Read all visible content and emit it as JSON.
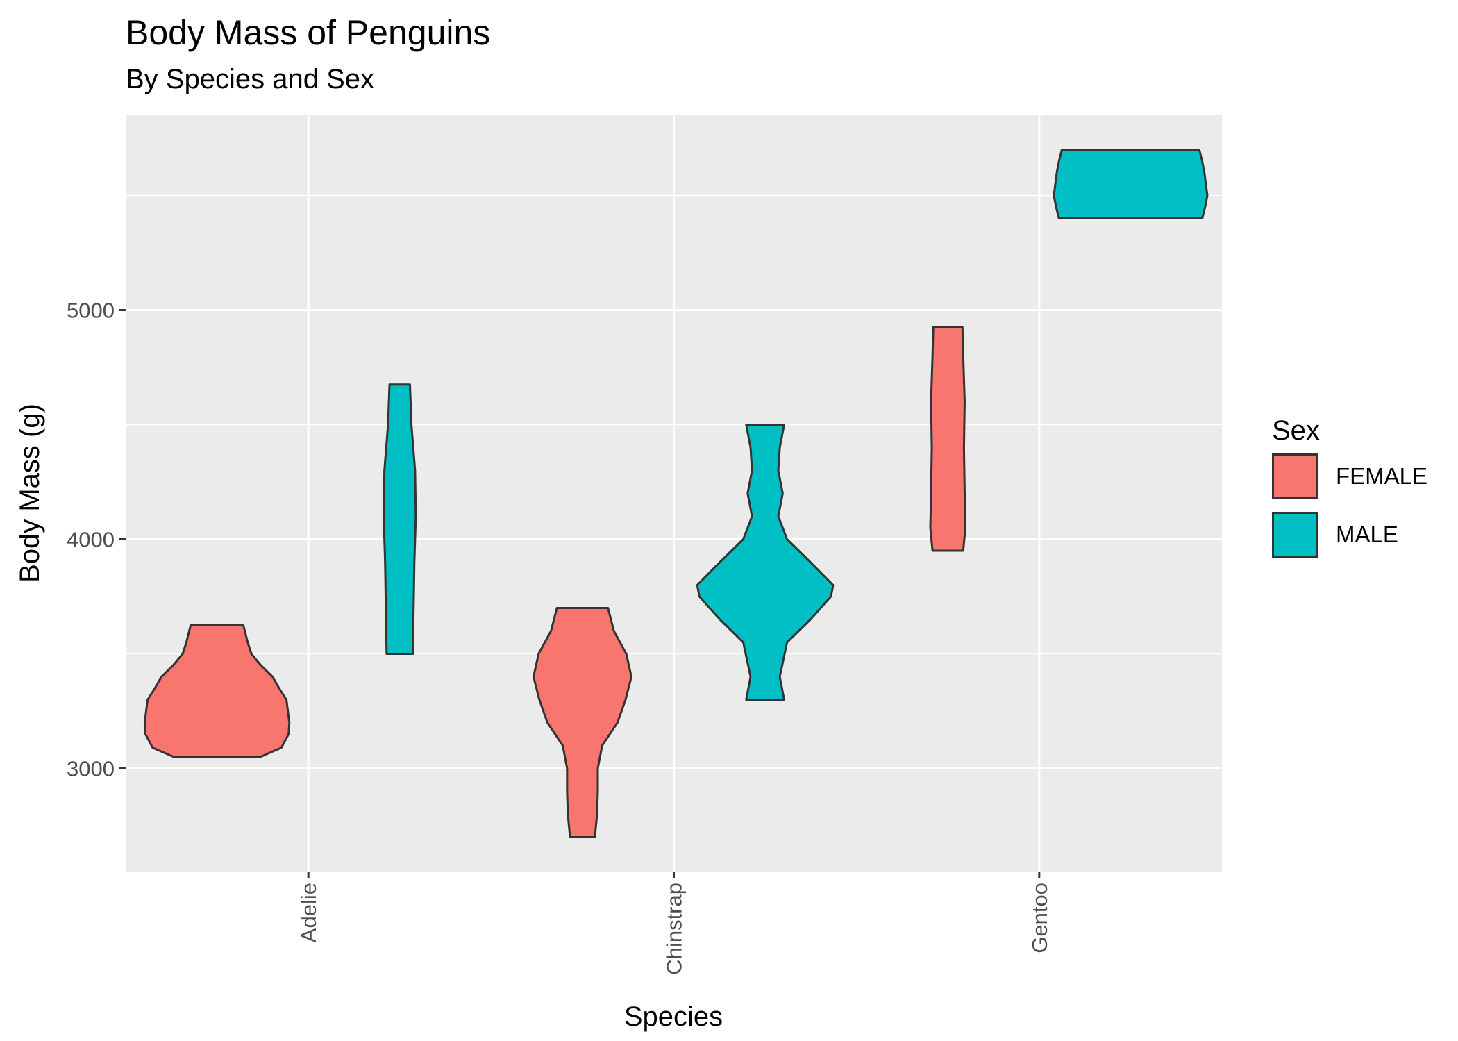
{
  "chart_data": {
    "type": "violin",
    "title": "Body Mass of Penguins",
    "subtitle": "By Species and Sex",
    "xlabel": "Species",
    "ylabel": "Body Mass (g)",
    "categories": [
      "Adelie",
      "Chinstrap",
      "Gentoo"
    ],
    "y_ticks": [
      3000,
      4000,
      5000
    ],
    "ylim": [
      2550,
      5850
    ],
    "grid": true,
    "legend": {
      "title": "Sex",
      "position": "right"
    },
    "series": [
      {
        "name": "FEMALE",
        "color": "#F8766D",
        "violins": [
          {
            "category": "Adelie",
            "min": 3050,
            "max": 3625,
            "profile": [
              [
                3050,
                0.59
              ],
              [
                3090,
                0.88
              ],
              [
                3150,
                0.98
              ],
              [
                3200,
                0.99
              ],
              [
                3300,
                0.95
              ],
              [
                3350,
                0.85
              ],
              [
                3400,
                0.76
              ],
              [
                3450,
                0.6
              ],
              [
                3500,
                0.47
              ],
              [
                3550,
                0.42
              ],
              [
                3625,
                0.36
              ]
            ]
          },
          {
            "category": "Chinstrap",
            "min": 2700,
            "max": 3700,
            "profile": [
              [
                2700,
                0.17
              ],
              [
                2800,
                0.2
              ],
              [
                2900,
                0.21
              ],
              [
                3000,
                0.21
              ],
              [
                3100,
                0.27
              ],
              [
                3200,
                0.48
              ],
              [
                3300,
                0.59
              ],
              [
                3400,
                0.67
              ],
              [
                3500,
                0.6
              ],
              [
                3600,
                0.43
              ],
              [
                3700,
                0.35
              ]
            ]
          },
          {
            "category": "Gentoo",
            "min": 3950,
            "max": 4925,
            "profile": [
              [
                3950,
                0.21
              ],
              [
                4050,
                0.24
              ],
              [
                4200,
                0.23
              ],
              [
                4400,
                0.22
              ],
              [
                4600,
                0.23
              ],
              [
                4800,
                0.21
              ],
              [
                4925,
                0.2
              ]
            ]
          }
        ]
      },
      {
        "name": "MALE",
        "color": "#00BFC4",
        "violins": [
          {
            "category": "Adelie",
            "min": 3500,
            "max": 4675,
            "profile": [
              [
                3500,
                0.18
              ],
              [
                3700,
                0.19
              ],
              [
                3900,
                0.2
              ],
              [
                4100,
                0.22
              ],
              [
                4300,
                0.21
              ],
              [
                4500,
                0.16
              ],
              [
                4675,
                0.14
              ]
            ]
          },
          {
            "category": "Chinstrap",
            "min": 3300,
            "max": 4500,
            "profile": [
              [
                3300,
                0.26
              ],
              [
                3400,
                0.2
              ],
              [
                3550,
                0.3
              ],
              [
                3650,
                0.62
              ],
              [
                3750,
                0.9
              ],
              [
                3800,
                0.93
              ],
              [
                3900,
                0.62
              ],
              [
                4000,
                0.3
              ],
              [
                4100,
                0.18
              ],
              [
                4200,
                0.24
              ],
              [
                4300,
                0.18
              ],
              [
                4400,
                0.2
              ],
              [
                4500,
                0.26
              ]
            ]
          },
          {
            "category": "Gentoo",
            "min": 5400,
            "max": 5700,
            "profile": [
              [
                5400,
                0.98
              ],
              [
                5450,
                1.02
              ],
              [
                5500,
                1.05
              ],
              [
                5550,
                1.03
              ],
              [
                5600,
                1.01
              ],
              [
                5650,
                0.98
              ],
              [
                5700,
                0.94
              ]
            ]
          }
        ]
      }
    ]
  }
}
